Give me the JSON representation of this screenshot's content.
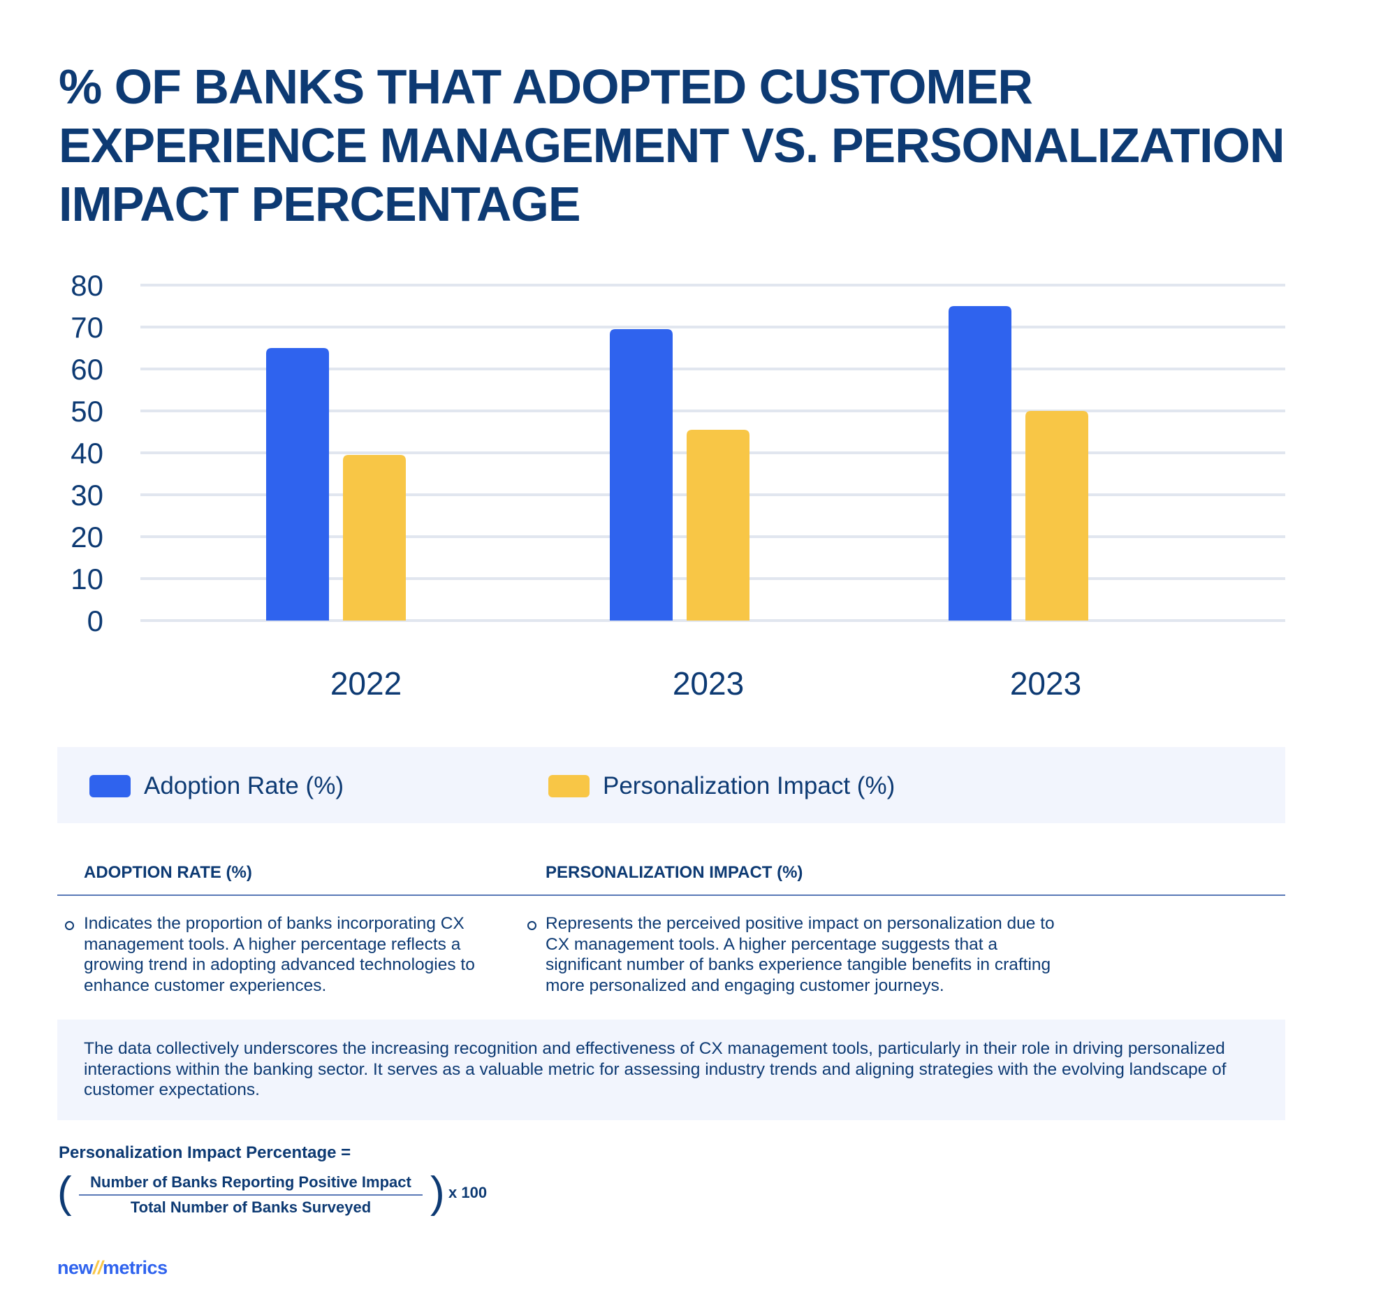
{
  "title": "% of Banks That Adopted Customer Experience Management vs. Personalization Impact Percentage",
  "chart_data": {
    "type": "bar",
    "categories": [
      "2022",
      "2023",
      "2023"
    ],
    "series": [
      {
        "name": "Adoption Rate (%)",
        "color": "#2f63ee",
        "values": [
          65,
          69.5,
          75
        ]
      },
      {
        "name": "Personalization Impact (%)",
        "color": "#f8c646",
        "values": [
          39.5,
          45.5,
          50
        ]
      }
    ],
    "ylim": [
      0,
      80
    ],
    "yticks": [
      "0",
      "10",
      "20",
      "30",
      "40",
      "50",
      "60",
      "70",
      "80"
    ],
    "grid": true,
    "legend": "bottom"
  },
  "legend": {
    "items": [
      {
        "label": "Adoption Rate (%)",
        "color": "#2f63ee"
      },
      {
        "label": "Personalization Impact (%)",
        "color": "#f8c646"
      }
    ]
  },
  "definitions": [
    {
      "header": "Adoption Rate (%)",
      "text": "Indicates the proportion of banks incorporating CX management tools. A higher percentage reflects a growing trend in adopting advanced technologies to enhance customer experiences."
    },
    {
      "header": "Personalization Impact (%)",
      "text": "Represents the perceived positive impact on personalization due to CX management tools. A higher percentage suggests that a significant number of banks experience tangible benefits in crafting more personalized and engaging customer journeys."
    }
  ],
  "summary": "The data collectively underscores the increasing recognition and effectiveness of CX management tools, particularly in their role in driving personalized interactions within the banking sector. It serves as a valuable metric for assessing industry trends and aligning strategies with the evolving landscape of customer expectations.",
  "formula": {
    "title": "Personalization Impact Percentage =",
    "numerator": "Number of Banks Reporting Positive Impact",
    "denominator": "Total Number of Banks Surveyed",
    "multiplier": "x 100"
  },
  "logo": {
    "part1": "new",
    "slashes": "//",
    "part2": "metrics"
  }
}
